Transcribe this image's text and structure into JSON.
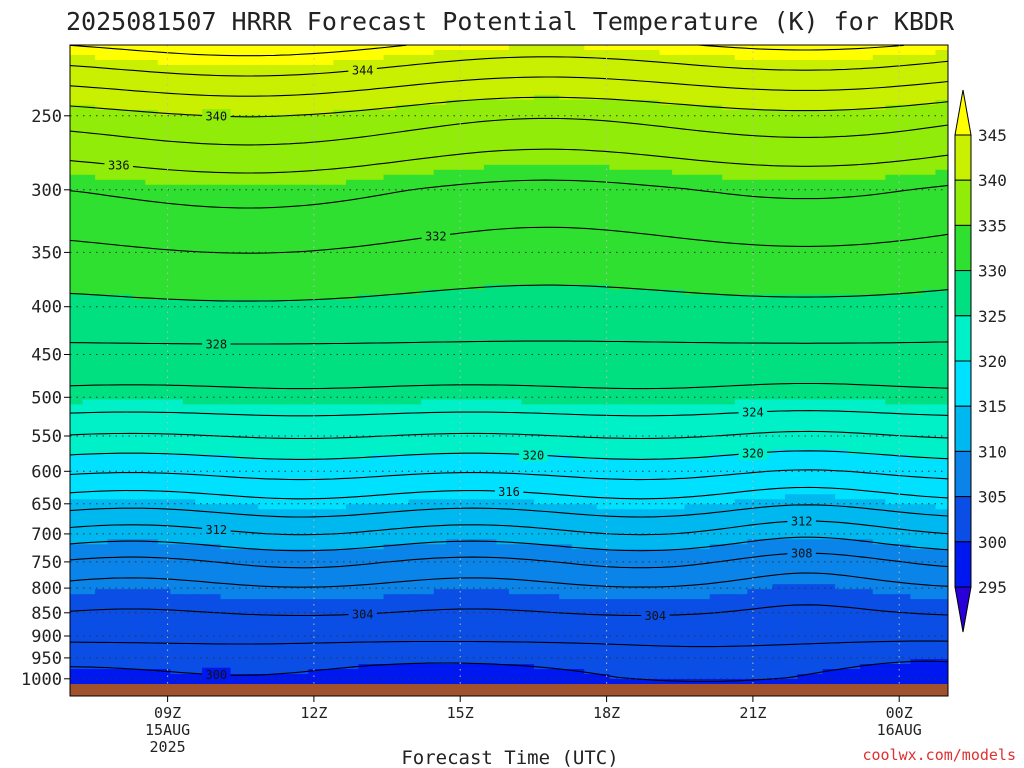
{
  "chart_data": {
    "type": "heatmap",
    "title": "2025081507 HRRR Forecast Potential Temperature (K) for KBDR",
    "xlabel": "Forecast Time (UTC)",
    "ylabel": "",
    "x_ticks": [
      {
        "hour": 9,
        "lines": [
          "09Z",
          "15AUG",
          "2025"
        ]
      },
      {
        "hour": 12,
        "lines": [
          "12Z"
        ]
      },
      {
        "hour": 15,
        "lines": [
          "15Z"
        ]
      },
      {
        "hour": 18,
        "lines": [
          "18Z"
        ]
      },
      {
        "hour": 21,
        "lines": [
          "21Z"
        ]
      },
      {
        "hour": 24,
        "lines": [
          "00Z",
          "16AUG"
        ]
      }
    ],
    "xlim": [
      7,
      25
    ],
    "y_ticks": [
      250,
      300,
      350,
      400,
      450,
      500,
      550,
      600,
      650,
      700,
      750,
      800,
      850,
      900,
      950,
      1000
    ],
    "ylim": [
      1013,
      210
    ],
    "y_scale": "log",
    "colorbar": {
      "ticks": [
        295,
        300,
        305,
        310,
        315,
        320,
        325,
        330,
        335,
        340,
        345
      ],
      "colors": [
        "#2a00d8",
        "#0018f0",
        "#0a4ee6",
        "#0a84e8",
        "#00b8f0",
        "#00e0ff",
        "#00f0c8",
        "#00e080",
        "#30e030",
        "#90ec08",
        "#c8f000",
        "#ffff00"
      ]
    },
    "contour_interval": 2,
    "contour_labels": [
      "344",
      "340",
      "336",
      "332",
      "328",
      "324",
      "320",
      "320",
      "316",
      "312",
      "312",
      "308",
      "304",
      "304",
      "300"
    ],
    "profile": {
      "pressure": [
        1013,
        1000,
        950,
        900,
        850,
        800,
        750,
        700,
        650,
        600,
        550,
        500,
        450,
        400,
        350,
        300,
        250,
        210
      ],
      "theta": [
        298.5,
        299.5,
        301,
        302.5,
        304,
        305.5,
        308,
        311.5,
        315,
        318.5,
        322,
        325.5,
        327.5,
        329.5,
        331.5,
        334,
        339,
        346
      ]
    },
    "grid": true,
    "credit": "coolwx.com/models"
  }
}
